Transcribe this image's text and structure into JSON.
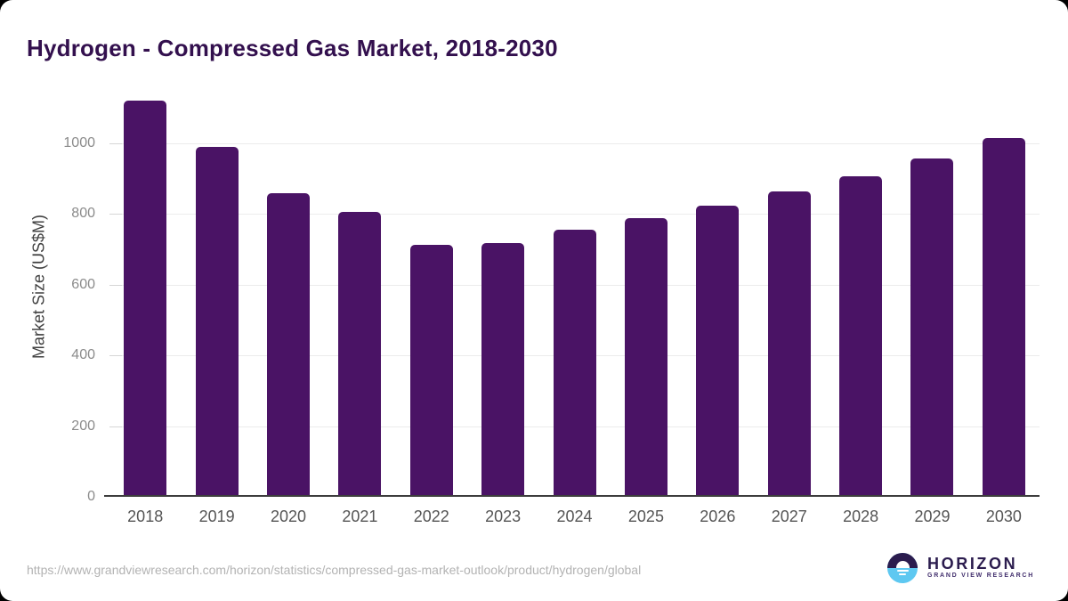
{
  "header": {
    "title": "Hydrogen - Compressed Gas Market, 2018-2030"
  },
  "chart_data": {
    "type": "bar",
    "title": "Hydrogen - Compressed Gas Market, 2018-2030",
    "categories": [
      "2018",
      "2019",
      "2020",
      "2021",
      "2022",
      "2023",
      "2024",
      "2025",
      "2026",
      "2027",
      "2028",
      "2029",
      "2030"
    ],
    "values": [
      1120,
      990,
      858,
      806,
      712,
      716,
      756,
      788,
      822,
      863,
      907,
      957,
      1013
    ],
    "xlabel": "",
    "ylabel": "Market Size (US$M)",
    "ylim": [
      0,
      1155
    ],
    "yticks": [
      0,
      200,
      400,
      600,
      800,
      1000
    ],
    "grid": "horizontal",
    "legend": "none",
    "bar_color": "#4a1365"
  },
  "footer": {
    "source_url": "https://www.grandviewresearch.com/horizon/statistics/compressed-gas-market-outlook/product/hydrogen/global",
    "logo": {
      "title": "HORIZON",
      "subtitle": "GRAND VIEW RESEARCH"
    }
  },
  "colors": {
    "bar": "#4a1365",
    "title": "#33104e",
    "axis": "#3d3d3d",
    "gridline": "#ececec",
    "tick_label": "#8b8b8b",
    "x_label": "#555555",
    "url": "#b3b3b3",
    "logo_dark": "#2b1c4e",
    "logo_blue": "#5ec8f1"
  }
}
